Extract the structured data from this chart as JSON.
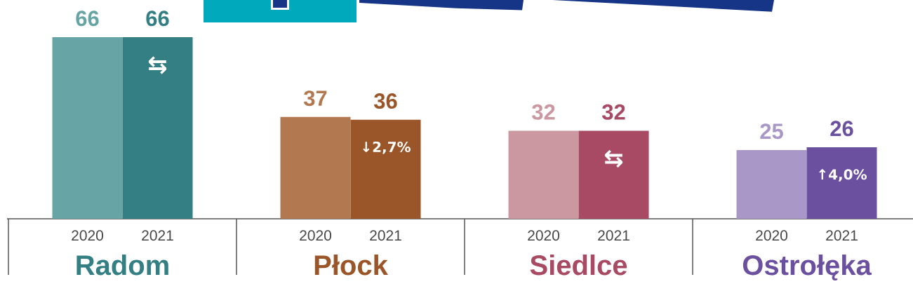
{
  "chart_data": {
    "type": "bar",
    "categories": [
      "Radom",
      "Płock",
      "Siedlce",
      "Ostrołęka"
    ],
    "series": [
      {
        "name": "2020",
        "colors": [
          "#67a4a5",
          "#b27850",
          "#cb98a2",
          "#a998c7"
        ],
        "values": [
          66,
          37,
          32,
          25
        ]
      },
      {
        "name": "2021",
        "colors": [
          "#347f83",
          "#9a5628",
          "#a84a64",
          "#6c50a0"
        ],
        "values": [
          66,
          36,
          32,
          26
        ]
      }
    ],
    "data_labels": true,
    "annotations": [
      {
        "text": "⇆",
        "x": "Radom",
        "y": 66
      },
      {
        "text": "↓2,7%",
        "x": "Płock",
        "y": 36
      },
      {
        "text": "⇆",
        "x": "Siedlce",
        "y": 32
      },
      {
        "text": "↑4,0%",
        "x": "Ostrołęka",
        "y": 26
      }
    ]
  }
}
